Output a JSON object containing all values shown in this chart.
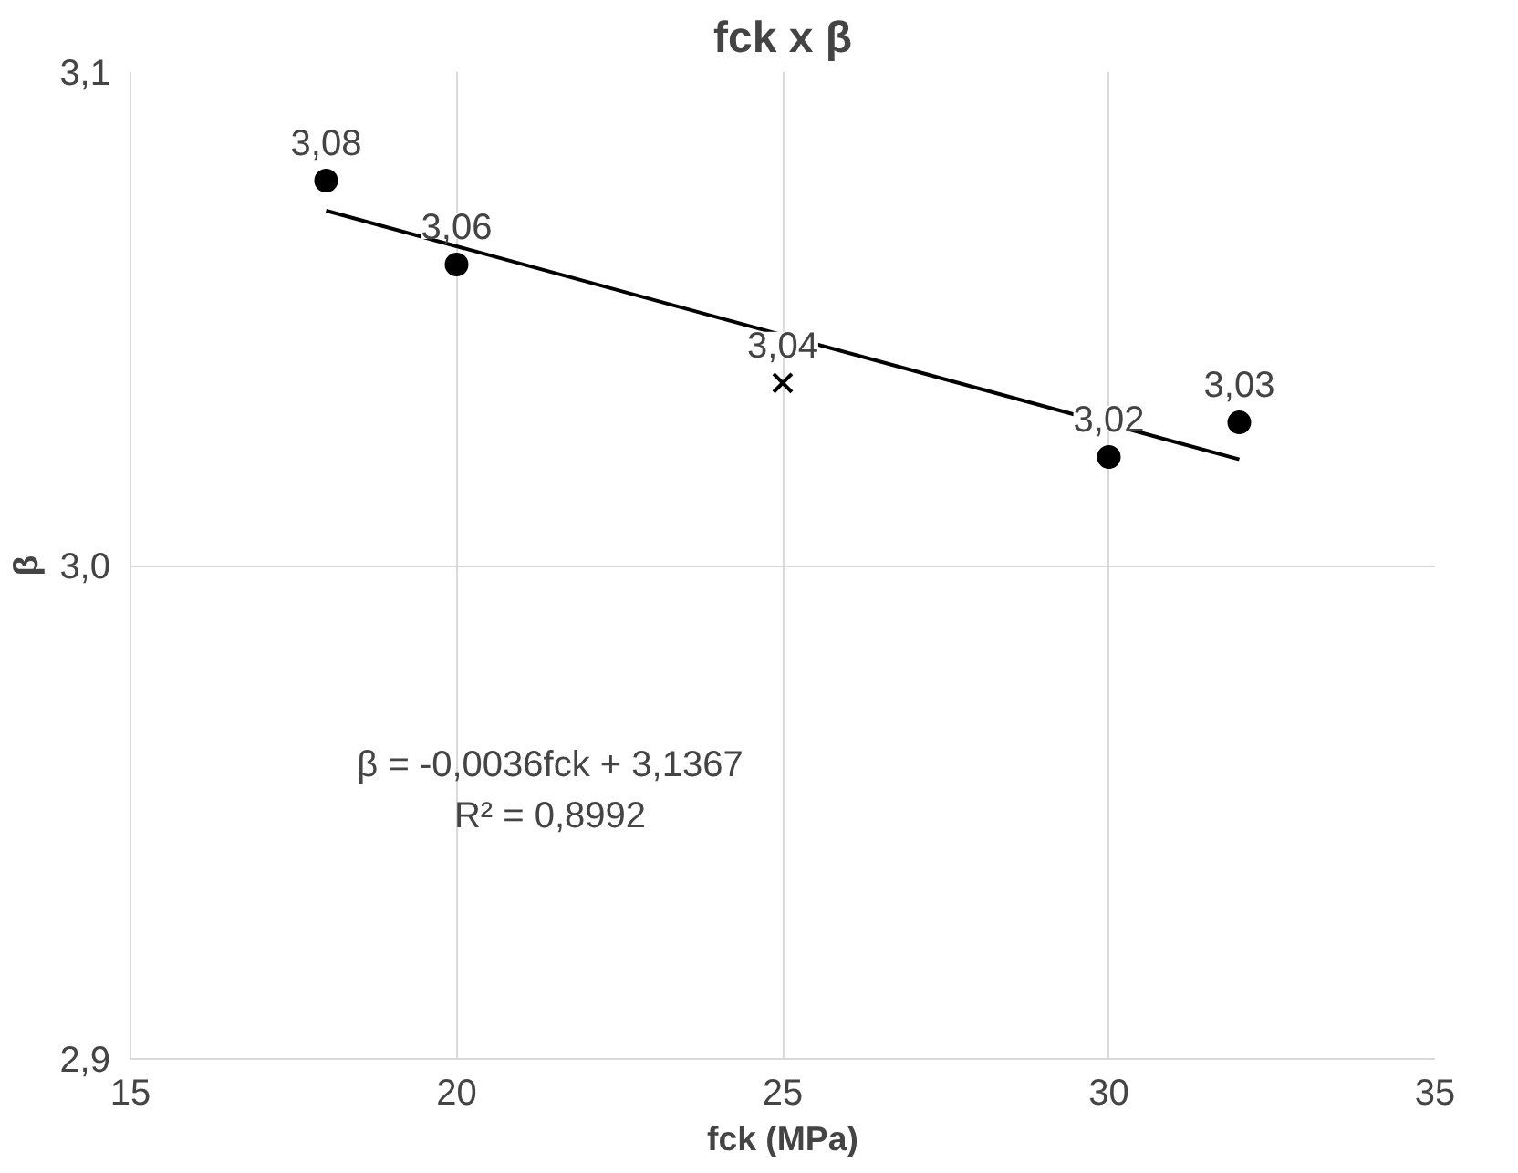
{
  "chart_data": {
    "type": "scatter",
    "title": "fck x β",
    "xlabel": "fck (MPa)",
    "ylabel": "β",
    "xlim": [
      15,
      35
    ],
    "xticks": [
      15,
      20,
      25,
      30,
      35
    ],
    "ylim": [
      2.9,
      3.1
    ],
    "yticks": [
      {
        "value": 2.9,
        "label": "2,9"
      },
      {
        "value": 3.0,
        "label": "3,0"
      },
      {
        "value": 3.1,
        "label": "3,1"
      }
    ],
    "grid": true,
    "series": [
      {
        "marker": "circle",
        "color": "#000000",
        "x": [
          18,
          20,
          30,
          32
        ],
        "values": [
          3.078,
          3.061,
          3.022,
          3.029
        ],
        "value_labels": [
          "3,08",
          "3,06",
          "3,02",
          "3,03"
        ]
      },
      {
        "type": "scatter",
        "marker": "cross",
        "color": "#000000",
        "x": [
          25
        ],
        "values": [
          3.037
        ],
        "value_labels": [
          "3,04"
        ]
      },
      {
        "type": "line",
        "color": "#000000",
        "x": [
          18,
          32
        ],
        "values": [
          3.0719,
          3.0215
        ]
      }
    ],
    "annotations": [
      "β = -0,0036fck + 3,1367",
      "R² = 0,8992"
    ]
  }
}
